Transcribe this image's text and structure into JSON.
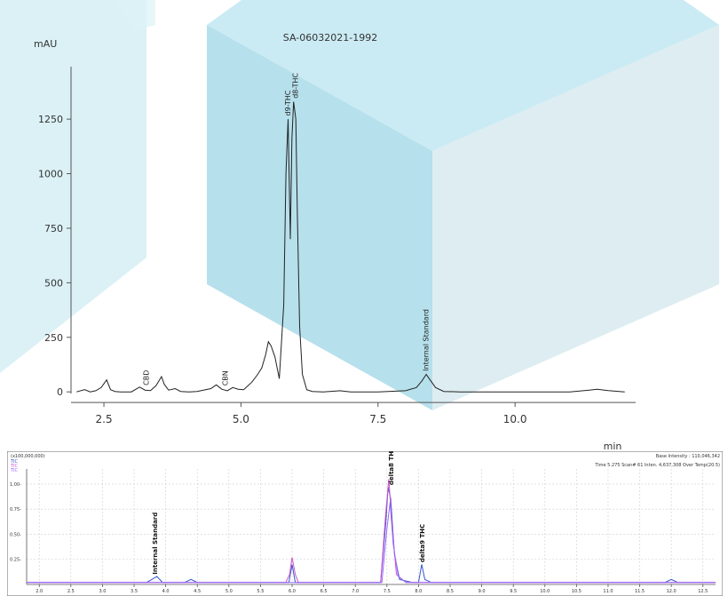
{
  "chart_data": [
    {
      "type": "line",
      "title": "SA-06032021-1992",
      "ylabel": "mAU",
      "xlabel": "min",
      "xlim": [
        1.9,
        12.2
      ],
      "ylim": [
        -40,
        1450
      ],
      "yticks": [
        0,
        250,
        500,
        750,
        1000,
        1250
      ],
      "xticks": [
        2.5,
        5.0,
        7.5,
        10.0
      ],
      "xtick_labels": [
        "2.5",
        "5.0",
        "7.5",
        "10.0"
      ],
      "series": [
        {
          "x": [
            2.0,
            2.15,
            2.25,
            2.35,
            2.45,
            2.55,
            2.62,
            2.7,
            2.8,
            3.0,
            3.15,
            3.25,
            3.35,
            3.45,
            3.55,
            3.6,
            3.68,
            3.8,
            3.9,
            4.05,
            4.2,
            4.45,
            4.55,
            4.65,
            4.75,
            4.85,
            4.95,
            5.05,
            5.2,
            5.3,
            5.38,
            5.45,
            5.5,
            5.55,
            5.62,
            5.7,
            5.78,
            5.82,
            5.86,
            5.9,
            5.93,
            5.96,
            6.0,
            6.03,
            6.07,
            6.12,
            6.2,
            6.3,
            6.5,
            6.8,
            7.0,
            7.5,
            8.0,
            8.2,
            8.3,
            8.38,
            8.45,
            8.55,
            8.7,
            9.0,
            10.0,
            11.0,
            11.35,
            11.5,
            11.7,
            12.0
          ],
          "y": [
            0,
            10,
            0,
            5,
            20,
            55,
            10,
            2,
            0,
            0,
            22,
            8,
            6,
            28,
            70,
            35,
            8,
            15,
            2,
            0,
            2,
            15,
            32,
            12,
            5,
            20,
            12,
            10,
            45,
            78,
            110,
            170,
            230,
            210,
            160,
            60,
            400,
            1000,
            1250,
            700,
            1160,
            1330,
            1250,
            800,
            300,
            80,
            10,
            2,
            0,
            5,
            0,
            0,
            5,
            20,
            50,
            80,
            55,
            20,
            2,
            0,
            0,
            0,
            8,
            12,
            6,
            0
          ],
          "color": "#222222"
        }
      ],
      "annotations": [
        {
          "x": 3.28,
          "y": 30,
          "text": "CBD"
        },
        {
          "x": 4.72,
          "y": 28,
          "text": "CBN"
        },
        {
          "x": 5.86,
          "y": 1265,
          "text": "d9-THC"
        },
        {
          "x": 6.0,
          "y": 1345,
          "text": "d8-THC"
        },
        {
          "x": 8.38,
          "y": 95,
          "text": "Internal Standard"
        }
      ]
    },
    {
      "type": "line",
      "scale_label": "(x100,000,000)",
      "legend": [
        "TIC",
        "TIC",
        "TIC"
      ],
      "legend_colors": [
        "#3355cc",
        "#cc55cc",
        "#9966ff"
      ],
      "info_text": "Time   5.275   Scan#   61   Inten.   4,637,308   Over Temp(20.5)",
      "base_intensity_text": "Base Intensity : 110,046,342",
      "ylim": [
        0,
        1.15
      ],
      "yticks": [
        0.25,
        0.5,
        0.75,
        1.0
      ],
      "ytick_labels": [
        "0.25-",
        "0.50-",
        "0.75-",
        "1.00-"
      ],
      "xlim": [
        1.8,
        12.7
      ],
      "xticks": [
        2.0,
        2.5,
        3.0,
        3.5,
        4.0,
        4.5,
        5.0,
        5.5,
        6.0,
        6.5,
        7.0,
        7.5,
        8.0,
        8.5,
        9.0,
        9.5,
        10.0,
        10.5,
        11.0,
        11.5,
        12.0,
        12.5
      ],
      "xtick_labels": [
        "2.0",
        "2.5",
        "3.0",
        "3.5",
        "4.0",
        "4.5",
        "5.0",
        "5.5",
        "6.0",
        "6.5",
        "7.0",
        "7.5",
        "8.0",
        "8.5",
        "9.0",
        "9.5",
        "10.0",
        "10.5",
        "11.0",
        "11.5",
        "12.0",
        "12.5"
      ],
      "series": [
        {
          "color": "#3355cc",
          "x": [
            1.8,
            3.7,
            3.78,
            3.86,
            3.95,
            4.3,
            4.4,
            4.5,
            5.0,
            5.95,
            6.0,
            6.05,
            6.15,
            7.4,
            7.48,
            7.52,
            7.56,
            7.62,
            7.7,
            7.9,
            8.0,
            8.05,
            8.1,
            8.2,
            11.9,
            12.0,
            12.1,
            12.7
          ],
          "y": [
            0.02,
            0.02,
            0.05,
            0.08,
            0.02,
            0.02,
            0.05,
            0.02,
            0.02,
            0.02,
            0.2,
            0.02,
            0.02,
            0.02,
            0.6,
            0.97,
            0.85,
            0.3,
            0.05,
            0.02,
            0.02,
            0.2,
            0.05,
            0.02,
            0.02,
            0.05,
            0.02,
            0.02
          ]
        },
        {
          "color": "#cc55cc",
          "x": [
            1.8,
            5.9,
            5.96,
            6.0,
            6.05,
            6.1,
            7.4,
            7.48,
            7.53,
            7.58,
            7.65,
            7.8,
            12.7
          ],
          "y": [
            0.02,
            0.02,
            0.1,
            0.27,
            0.1,
            0.02,
            0.02,
            0.7,
            1.05,
            0.6,
            0.1,
            0.02,
            0.02
          ]
        },
        {
          "color": "#9966ff",
          "x": [
            1.8,
            7.42,
            7.5,
            7.55,
            7.6,
            7.68,
            7.8,
            12.7
          ],
          "y": [
            0.02,
            0.02,
            0.55,
            0.82,
            0.4,
            0.08,
            0.02,
            0.02
          ]
        }
      ],
      "annotations": [
        {
          "x": 3.82,
          "y": 0.1,
          "text": "Internal Standard"
        },
        {
          "x": 7.56,
          "y": 0.99,
          "text": "delta8 THC"
        },
        {
          "x": 8.05,
          "y": 0.22,
          "text": "delta9 THC"
        }
      ]
    }
  ]
}
